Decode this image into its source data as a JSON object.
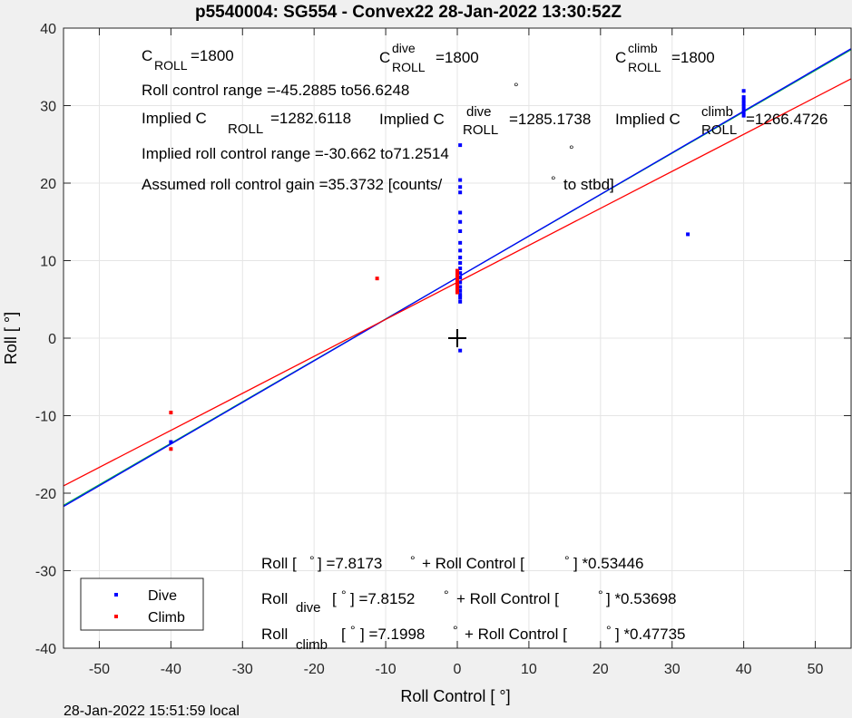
{
  "chart_data": {
    "type": "scatter",
    "title": "p5540004: SG554 - Convex22 28-Jan-2022 13:30:52Z",
    "xlabel": "Roll Control [ °]",
    "ylabel": "Roll [ °]",
    "xlim": [
      -55,
      55
    ],
    "ylim": [
      -40,
      40
    ],
    "xticks": [
      -50,
      -40,
      -30,
      -20,
      -10,
      0,
      10,
      20,
      30,
      40,
      50
    ],
    "yticks": [
      -40,
      -30,
      -20,
      -10,
      0,
      10,
      20,
      30,
      40
    ],
    "grid": true,
    "legend_position": "bottom-left",
    "series": [
      {
        "name": "Dive",
        "color": "#0000ff",
        "marker": "dot",
        "points": [
          [
            -40,
            -13.4
          ],
          [
            0.4,
            -1.6
          ],
          [
            0.4,
            4.7
          ],
          [
            0.4,
            5.2
          ],
          [
            0.4,
            5.6
          ],
          [
            0.4,
            6.1
          ],
          [
            0.4,
            6.6
          ],
          [
            0.4,
            7.2
          ],
          [
            0.4,
            7.8
          ],
          [
            0.4,
            8.4
          ],
          [
            0.4,
            9.0
          ],
          [
            0.4,
            9.7
          ],
          [
            0.4,
            10.4
          ],
          [
            0.4,
            11.3
          ],
          [
            0.4,
            12.3
          ],
          [
            0.4,
            13.8
          ],
          [
            0.4,
            15.0
          ],
          [
            0.4,
            16.2
          ],
          [
            0.4,
            18.8
          ],
          [
            0.4,
            19.5
          ],
          [
            0.4,
            20.4
          ],
          [
            0.4,
            24.9
          ],
          [
            32.2,
            13.4
          ],
          [
            40,
            28.7
          ],
          [
            40,
            29.1
          ],
          [
            40,
            29.5
          ],
          [
            40,
            29.9
          ],
          [
            40,
            30.3
          ],
          [
            40,
            30.7
          ],
          [
            40,
            31.1
          ],
          [
            40,
            31.9
          ]
        ]
      },
      {
        "name": "Climb",
        "color": "#ff0000",
        "marker": "dot",
        "points": [
          [
            -40,
            -9.6
          ],
          [
            -40,
            -14.3
          ],
          [
            -11.2,
            7.7
          ],
          [
            0,
            5.9
          ],
          [
            0,
            6.2
          ],
          [
            0,
            6.5
          ],
          [
            0,
            6.8
          ],
          [
            0,
            7.1
          ],
          [
            0,
            7.4
          ],
          [
            0,
            7.7
          ],
          [
            0,
            8.0
          ],
          [
            0,
            8.3
          ],
          [
            0,
            8.7
          ]
        ]
      }
    ],
    "lines": [
      {
        "name": "fit",
        "color": "#00aa55",
        "intercept": 7.8173,
        "slope": 0.53446
      },
      {
        "name": "fit-dive",
        "color": "#0000ff",
        "intercept": 7.8152,
        "slope": 0.53698
      },
      {
        "name": "fit-climb",
        "color": "#ff0000",
        "intercept": 7.1998,
        "slope": 0.47735
      }
    ],
    "origin_marker": [
      0,
      0
    ],
    "annotations": {
      "c_roll_text": "C",
      "c_roll_sub": "ROLL",
      "c_roll_val": "=1800",
      "c_dive_text": "C",
      "c_dive_sup": "dive",
      "c_dive_sub": "ROLL",
      "c_dive_val": "=1800",
      "c_climb_text": "C",
      "c_climb_sup": "climb",
      "c_climb_sub": "ROLL",
      "c_climb_val": "=1800",
      "roll_range": "Roll control range =-45.2885 to56.6248",
      "implied_1_a": "Implied C",
      "implied_1_sub": "ROLL",
      "implied_1_b": "=1282.6118",
      "implied_2_a": "Implied C",
      "implied_2_sup": "dive",
      "implied_2_sub": "ROLL",
      "implied_2_b": "=1285.1738",
      "implied_3_a": "Implied C",
      "implied_3_sup": "climb",
      "implied_3_sub": "ROLL",
      "implied_3_b": "=1266.4726",
      "implied_range": "Implied roll control range =-30.662 to71.2514",
      "gain_a": "Assumed roll control gain =35.3732 [counts/",
      "gain_b": "to stbd]",
      "fit_all_a": "Roll [",
      "fit_all_b": "] =7.8173",
      "fit_all_c": "+ Roll Control [",
      "fit_all_d": "] *0.53446",
      "fit_dive_a": "Roll",
      "fit_dive_sub": "dive",
      "fit_dive_b": "[",
      "fit_dive_c": "] =7.8152",
      "fit_dive_d": "+ Roll Control [",
      "fit_dive_e": "] *0.53698",
      "fit_climb_a": "Roll",
      "fit_climb_sub": "climb",
      "fit_climb_b": "[",
      "fit_climb_c": "] =7.1998",
      "fit_climb_d": "+ Roll Control [",
      "fit_climb_e": "] *0.47735",
      "degree": "°"
    },
    "footer": "28-Jan-2022 15:51:59 local"
  }
}
